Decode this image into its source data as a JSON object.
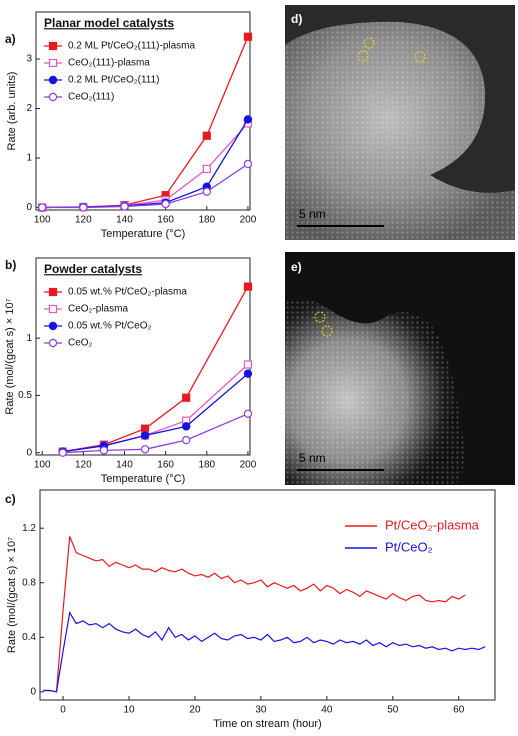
{
  "chart_data": [
    {
      "type": "line",
      "label": "a)",
      "title": "Planar model catalysts",
      "xlabel": "Temperature (°C)",
      "ylabel": "Rate (arb. units)",
      "x": [
        100,
        120,
        140,
        160,
        180,
        200
      ],
      "series": [
        {
          "name": "0.2 ML Pt/CeO₂(111)-plasma",
          "color": "#e8191f",
          "marker": "square",
          "filled": true,
          "values": [
            0,
            0.01,
            0.05,
            0.25,
            1.45,
            3.45
          ]
        },
        {
          "name": "CeO₂(111)-plasma",
          "color": "#e05ac0",
          "marker": "square",
          "filled": false,
          "values": [
            0,
            0.01,
            0.04,
            0.15,
            0.78,
            1.7
          ]
        },
        {
          "name": "0.2 ML Pt/CeO₂(111)",
          "color": "#1414e0",
          "marker": "circle",
          "filled": true,
          "values": [
            0,
            0.01,
            0.03,
            0.1,
            0.42,
            1.78
          ]
        },
        {
          "name": "CeO₂(111)",
          "color": "#8a3ee0",
          "marker": "circle",
          "filled": false,
          "values": [
            0,
            0,
            0.02,
            0.07,
            0.32,
            0.88
          ]
        }
      ],
      "xlim": [
        97,
        201
      ],
      "ylim": [
        -0.05,
        3.95
      ],
      "xticks": [
        100,
        120,
        140,
        160,
        180,
        200
      ],
      "yticks": [
        0,
        1,
        2,
        3
      ],
      "legend": "upper left"
    },
    {
      "type": "line",
      "label": "b)",
      "title": "Powder catalysts",
      "xlabel": "Temperature (°C)",
      "ylabel": "Rate (mol/(gcat s) × 10⁷",
      "x": [
        110,
        130,
        150,
        170,
        200
      ],
      "series": [
        {
          "name": "0.05 wt.% Pt/CeO₂-plasma",
          "color": "#e8191f",
          "marker": "square",
          "filled": true,
          "values": [
            0.01,
            0.07,
            0.21,
            0.48,
            1.45
          ]
        },
        {
          "name": "CeO₂-plasma",
          "color": "#e05ac0",
          "marker": "square",
          "filled": false,
          "values": [
            0.01,
            0.06,
            0.15,
            0.28,
            0.77
          ]
        },
        {
          "name": "0.05 wt.% Pt/CeO₂",
          "color": "#1414e0",
          "marker": "circle",
          "filled": true,
          "values": [
            0.01,
            0.06,
            0.15,
            0.23,
            0.69
          ]
        },
        {
          "name": "CeO₂",
          "color": "#8a3ee0",
          "marker": "circle",
          "filled": false,
          "values": [
            0,
            0.02,
            0.03,
            0.11,
            0.34
          ]
        }
      ],
      "xlim": [
        97,
        201
      ],
      "ylim": [
        -0.02,
        1.7
      ],
      "xticks": [
        100,
        120,
        140,
        160,
        180,
        200
      ],
      "yticks": [
        0,
        0.5,
        1
      ],
      "legend": "upper left"
    },
    {
      "type": "line",
      "label": "c)",
      "xlabel": "Time on stream (hour)",
      "ylabel": "Rate (mol/(gcat s) × 10⁷",
      "x": [
        -3,
        -2,
        -1,
        0,
        1,
        2,
        3,
        4,
        5,
        6,
        7,
        8,
        9,
        10,
        11,
        12,
        13,
        14,
        15,
        16,
        17,
        18,
        19,
        20,
        21,
        22,
        23,
        24,
        25,
        26,
        27,
        28,
        29,
        30,
        31,
        32,
        33,
        34,
        35,
        36,
        37,
        38,
        39,
        40,
        41,
        42,
        43,
        44,
        45,
        46,
        47,
        48,
        49,
        50,
        51,
        52,
        53,
        54,
        55,
        56,
        57,
        58,
        59,
        60,
        61,
        62,
        63,
        64
      ],
      "series": [
        {
          "name": "Pt/CeO₂-plasma",
          "color": "#e8191f",
          "values": [
            0.01,
            0.01,
            0.0,
            0.6,
            1.14,
            1.02,
            1.0,
            0.98,
            0.96,
            0.97,
            0.92,
            0.95,
            0.93,
            0.91,
            0.93,
            0.9,
            0.9,
            0.88,
            0.91,
            0.89,
            0.88,
            0.9,
            0.87,
            0.85,
            0.86,
            0.84,
            0.87,
            0.83,
            0.85,
            0.8,
            0.82,
            0.79,
            0.8,
            0.82,
            0.77,
            0.8,
            0.78,
            0.76,
            0.78,
            0.74,
            0.76,
            0.79,
            0.74,
            0.78,
            0.76,
            0.72,
            0.75,
            0.73,
            0.7,
            0.74,
            0.72,
            0.7,
            0.68,
            0.72,
            0.69,
            0.67,
            0.7,
            0.71,
            0.67,
            0.66,
            0.67,
            0.66,
            0.7,
            0.68,
            0.71,
            null,
            null,
            null
          ]
        },
        {
          "name": "Pt/CeO₂",
          "color": "#1414e0",
          "values": [
            0.01,
            0.01,
            0.0,
            0.3,
            0.58,
            0.5,
            0.52,
            0.49,
            0.5,
            0.47,
            0.5,
            0.46,
            0.44,
            0.43,
            0.46,
            0.42,
            0.4,
            0.44,
            0.38,
            0.47,
            0.4,
            0.42,
            0.38,
            0.41,
            0.37,
            0.4,
            0.43,
            0.39,
            0.38,
            0.41,
            0.42,
            0.39,
            0.4,
            0.38,
            0.42,
            0.37,
            0.38,
            0.4,
            0.36,
            0.37,
            0.4,
            0.36,
            0.38,
            0.37,
            0.35,
            0.38,
            0.36,
            0.37,
            0.35,
            0.38,
            0.34,
            0.36,
            0.33,
            0.36,
            0.34,
            0.35,
            0.33,
            0.34,
            0.32,
            0.33,
            0.31,
            0.32,
            0.3,
            0.32,
            0.31,
            0.32,
            0.31,
            0.33
          ]
        }
      ],
      "xlim": [
        -3.5,
        65.5
      ],
      "ylim": [
        -0.06,
        1.48
      ],
      "xticks": [
        0,
        10,
        20,
        30,
        40,
        50,
        60
      ],
      "yticks": [
        0,
        0.4,
        0.8,
        1.2
      ],
      "legend": "upper right"
    }
  ],
  "images": [
    {
      "label": "d)",
      "scale_bar": "5 nm"
    },
    {
      "label": "e)",
      "scale_bar": "5 nm"
    }
  ]
}
